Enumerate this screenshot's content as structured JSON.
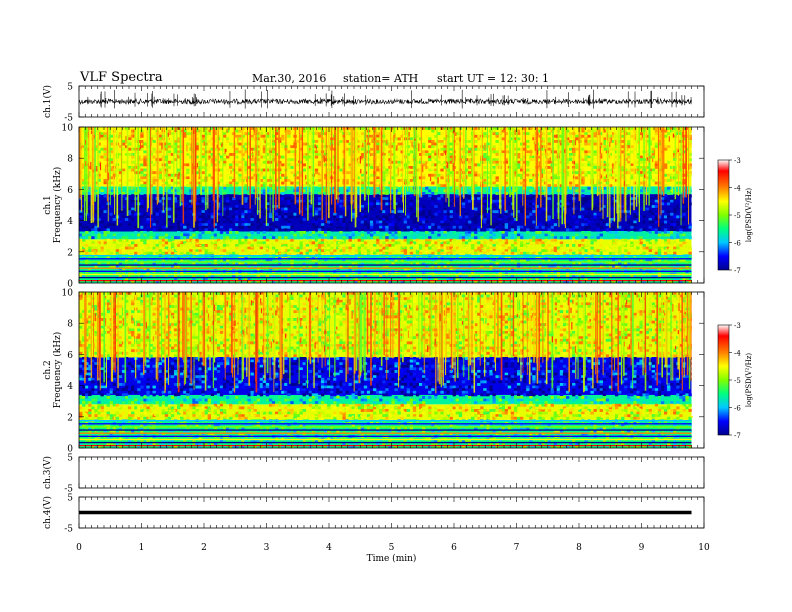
{
  "header": {
    "title": "VLF  Spectra",
    "date": "Mar.30, 2016",
    "station": "station= ATH",
    "start": "start  UT  =    12: 30: 1"
  },
  "chart_data": [
    {
      "type": "line",
      "panel": "ch1-waveform",
      "ylabel": "ch.1(V)",
      "yticks": [
        "5",
        "-5"
      ],
      "ylim": [
        -5,
        5
      ],
      "x": [
        0,
        1,
        2,
        3,
        4,
        5,
        6,
        7,
        8,
        9,
        9.8
      ],
      "values": [
        0,
        0,
        0,
        0,
        0,
        0,
        0,
        0,
        0,
        0,
        0
      ],
      "note": "noisy waveform near 0 V with sparse spikes"
    },
    {
      "type": "heatmap",
      "panel": "ch1-spectrogram",
      "ylabel_channel": "ch.1",
      "ylabel": "Frequency  (kHz)",
      "yticks": [
        "0",
        "2",
        "4",
        "6",
        "8",
        "10"
      ],
      "ylim": [
        0,
        10
      ],
      "xlim": [
        0,
        9.8
      ],
      "colorbar": {
        "label": "log(PSD(V²/Hz)",
        "ticks": [
          "-3",
          "-4",
          "-5",
          "-6",
          "-7"
        ],
        "range": [
          -7,
          -3
        ]
      },
      "bands_khz": [
        {
          "from": 0,
          "to": 1.8,
          "level": -5.5
        },
        {
          "from": 1.8,
          "to": 2.8,
          "level": -4.6
        },
        {
          "from": 2.8,
          "to": 3.3,
          "level": -5.7
        },
        {
          "from": 3.3,
          "to": 5.7,
          "level": -6.8
        },
        {
          "from": 5.7,
          "to": 6.2,
          "level": -5.6
        },
        {
          "from": 6.2,
          "to": 10,
          "level": -4.5
        }
      ]
    },
    {
      "type": "heatmap",
      "panel": "ch2-spectrogram",
      "ylabel_channel": "ch.2",
      "ylabel": "Frequency  (kHz)",
      "yticks": [
        "0",
        "2",
        "4",
        "6",
        "8",
        "10"
      ],
      "ylim": [
        0,
        10
      ],
      "xlim": [
        0,
        9.8
      ],
      "colorbar": {
        "label": "log(PSD(V²/Hz)",
        "ticks": [
          "-3",
          "-4",
          "-5",
          "-6",
          "-7"
        ],
        "range": [
          -7,
          -3
        ]
      },
      "bands_khz": [
        {
          "from": 0,
          "to": 1.8,
          "level": -5.5
        },
        {
          "from": 1.8,
          "to": 2.8,
          "level": -4.6
        },
        {
          "from": 2.8,
          "to": 3.4,
          "level": -5.6
        },
        {
          "from": 3.4,
          "to": 5.8,
          "level": -6.6
        },
        {
          "from": 5.8,
          "to": 10,
          "level": -4.6
        }
      ]
    },
    {
      "type": "line",
      "panel": "ch3-waveform",
      "ylabel": "ch.3(V)",
      "yticks": [
        "5",
        "-5"
      ],
      "ylim": [
        -5,
        5
      ],
      "x": [],
      "values": []
    },
    {
      "type": "line",
      "panel": "ch4-waveform",
      "ylabel": "ch.4(V)",
      "yticks": [
        "5",
        "-5"
      ],
      "ylim": [
        -5,
        5
      ],
      "x": [
        0,
        9.8
      ],
      "values": [
        0,
        0
      ]
    }
  ],
  "xaxis": {
    "label": "Time  (min)",
    "ticks": [
      "0",
      "1",
      "2",
      "3",
      "4",
      "5",
      "6",
      "7",
      "8",
      "9",
      "10"
    ],
    "range": [
      0,
      10
    ]
  },
  "colors": {
    "scale": [
      "#00008f",
      "#0000ff",
      "#00c8ff",
      "#00ff80",
      "#80ff00",
      "#ffff00",
      "#ff8000",
      "#ff0000",
      "#ffffff"
    ]
  }
}
